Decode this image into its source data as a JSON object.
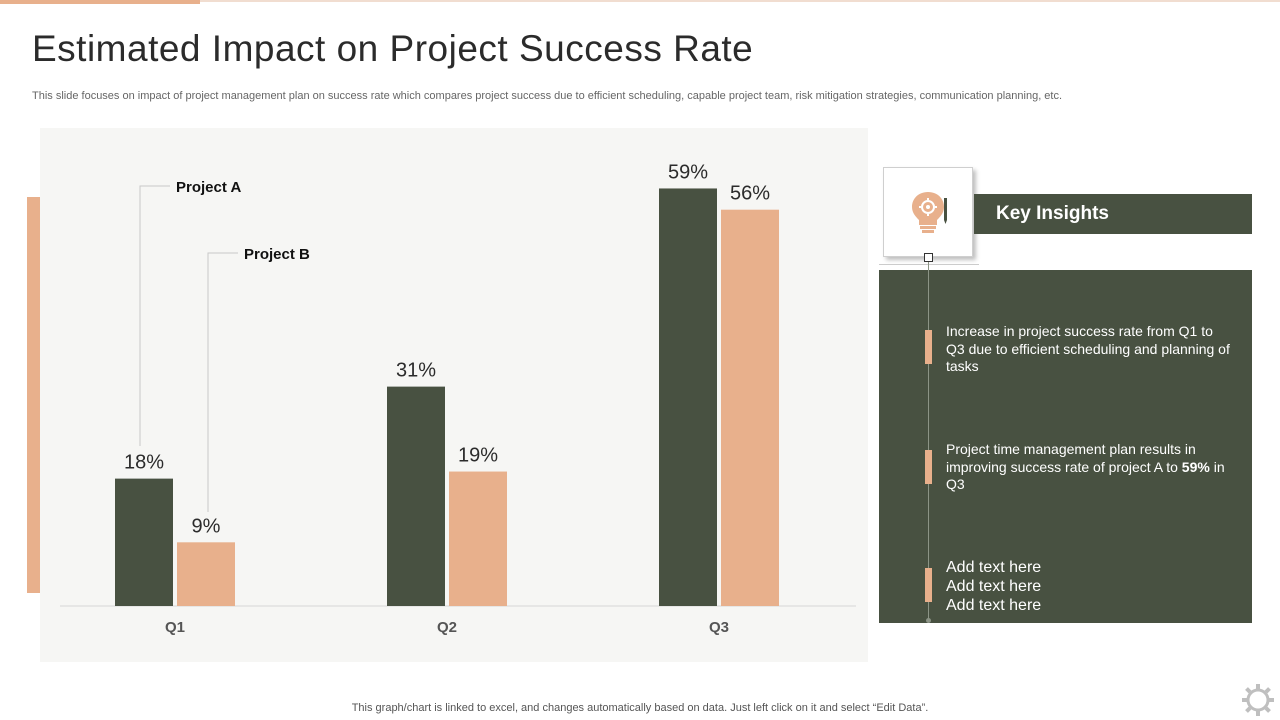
{
  "title": "Estimated Impact on Project Success Rate",
  "subtitle": "This slide focuses on impact of project management plan on success rate which compares project success due to efficient scheduling, capable project team, risk mitigation strategies, communication planning, etc.",
  "chart_data": {
    "type": "bar",
    "categories": [
      "Q1",
      "Q2",
      "Q3"
    ],
    "series": [
      {
        "name": "Project A",
        "values": [
          18,
          31,
          59
        ],
        "labels": [
          "18%",
          "31%",
          "59%"
        ],
        "color": "#485141"
      },
      {
        "name": "Project B",
        "values": [
          9,
          19,
          56
        ],
        "labels": [
          "9%",
          "19%",
          "56%"
        ],
        "color": "#e8b08c"
      }
    ],
    "ylim": [
      0,
      65
    ],
    "legend": "callouts top-left",
    "grid": false
  },
  "insights": {
    "header": "Key Insights",
    "items": [
      {
        "text": "Increase in project success rate from Q1 to Q3 due to efficient scheduling and planning of tasks"
      },
      {
        "text_pre": "Project time management plan results in improving success rate of project A to ",
        "text_bold": "59%",
        "text_post": " in Q3"
      },
      {
        "lines": [
          "Add text here",
          "Add text here",
          "Add text here"
        ]
      }
    ]
  },
  "footer": "This graph/chart is linked to excel,  and changes automatically based on data. Just left click on it and select “Edit Data”.",
  "colors": {
    "dark": "#485141",
    "accent": "#e8b08c"
  }
}
